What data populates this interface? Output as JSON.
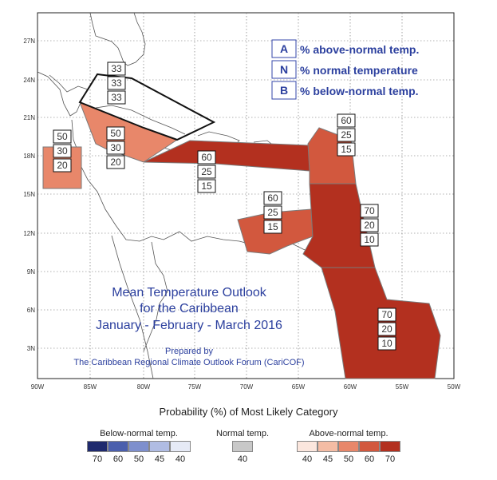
{
  "map": {
    "lat_labels": [
      "27N",
      "24N",
      "21N",
      "18N",
      "15N",
      "12N",
      "9N",
      "6N",
      "3N"
    ],
    "lon_labels": [
      "90W",
      "85W",
      "80W",
      "75W",
      "70W",
      "65W",
      "60W",
      "55W",
      "50W"
    ],
    "title_lines": [
      "Mean Temperature Outlook",
      "for the Caribbean",
      "January - February - March 2016"
    ],
    "prepared_by": "Prepared by",
    "organization": "The Caribbean Regional Climate Outlook Forum (CariCOF)"
  },
  "key": [
    {
      "letter": "A",
      "text": "% above-normal temp."
    },
    {
      "letter": "N",
      "text": "% normal temperature"
    },
    {
      "letter": "B",
      "text": "% below-normal temp."
    }
  ],
  "regions": [
    {
      "name": "bahamas",
      "probs": [
        "33",
        "33",
        "33"
      ],
      "category": "equal"
    },
    {
      "name": "belize",
      "probs": [
        "50",
        "30",
        "20"
      ],
      "category": "above-50"
    },
    {
      "name": "cuba-cayman-jamaica",
      "probs": [
        "50",
        "30",
        "20"
      ],
      "category": "above-50"
    },
    {
      "name": "greater-antilles",
      "probs": [
        "60",
        "25",
        "15"
      ],
      "category": "above-60"
    },
    {
      "name": "leeward-islands",
      "probs": [
        "60",
        "25",
        "15"
      ],
      "category": "above-60"
    },
    {
      "name": "abc-islands",
      "probs": [
        "60",
        "25",
        "15"
      ],
      "category": "above-60"
    },
    {
      "name": "windward-islands",
      "probs": [
        "70",
        "20",
        "10"
      ],
      "category": "above-70"
    },
    {
      "name": "guianas",
      "probs": [
        "70",
        "20",
        "10"
      ],
      "category": "above-70"
    }
  ],
  "legend": {
    "title": "Probability (%) of Most Likely Category",
    "below": {
      "title": "Below-normal temp.",
      "colors": [
        "#1f2a6e",
        "#4b5fad",
        "#7e8fcd",
        "#b0bce3",
        "#e6eaf6"
      ],
      "ticks": [
        "70",
        "60",
        "50",
        "45",
        "40"
      ]
    },
    "normal": {
      "title": "Normal temp.",
      "colors": [
        "#c8c8c8"
      ],
      "ticks": [
        "40"
      ]
    },
    "above": {
      "title": "Above-normal temp.",
      "colors": [
        "#fbe6dd",
        "#f4bca4",
        "#e8876a",
        "#d2583e",
        "#b3301f"
      ],
      "ticks": [
        "40",
        "45",
        "50",
        "60",
        "70"
      ]
    }
  }
}
